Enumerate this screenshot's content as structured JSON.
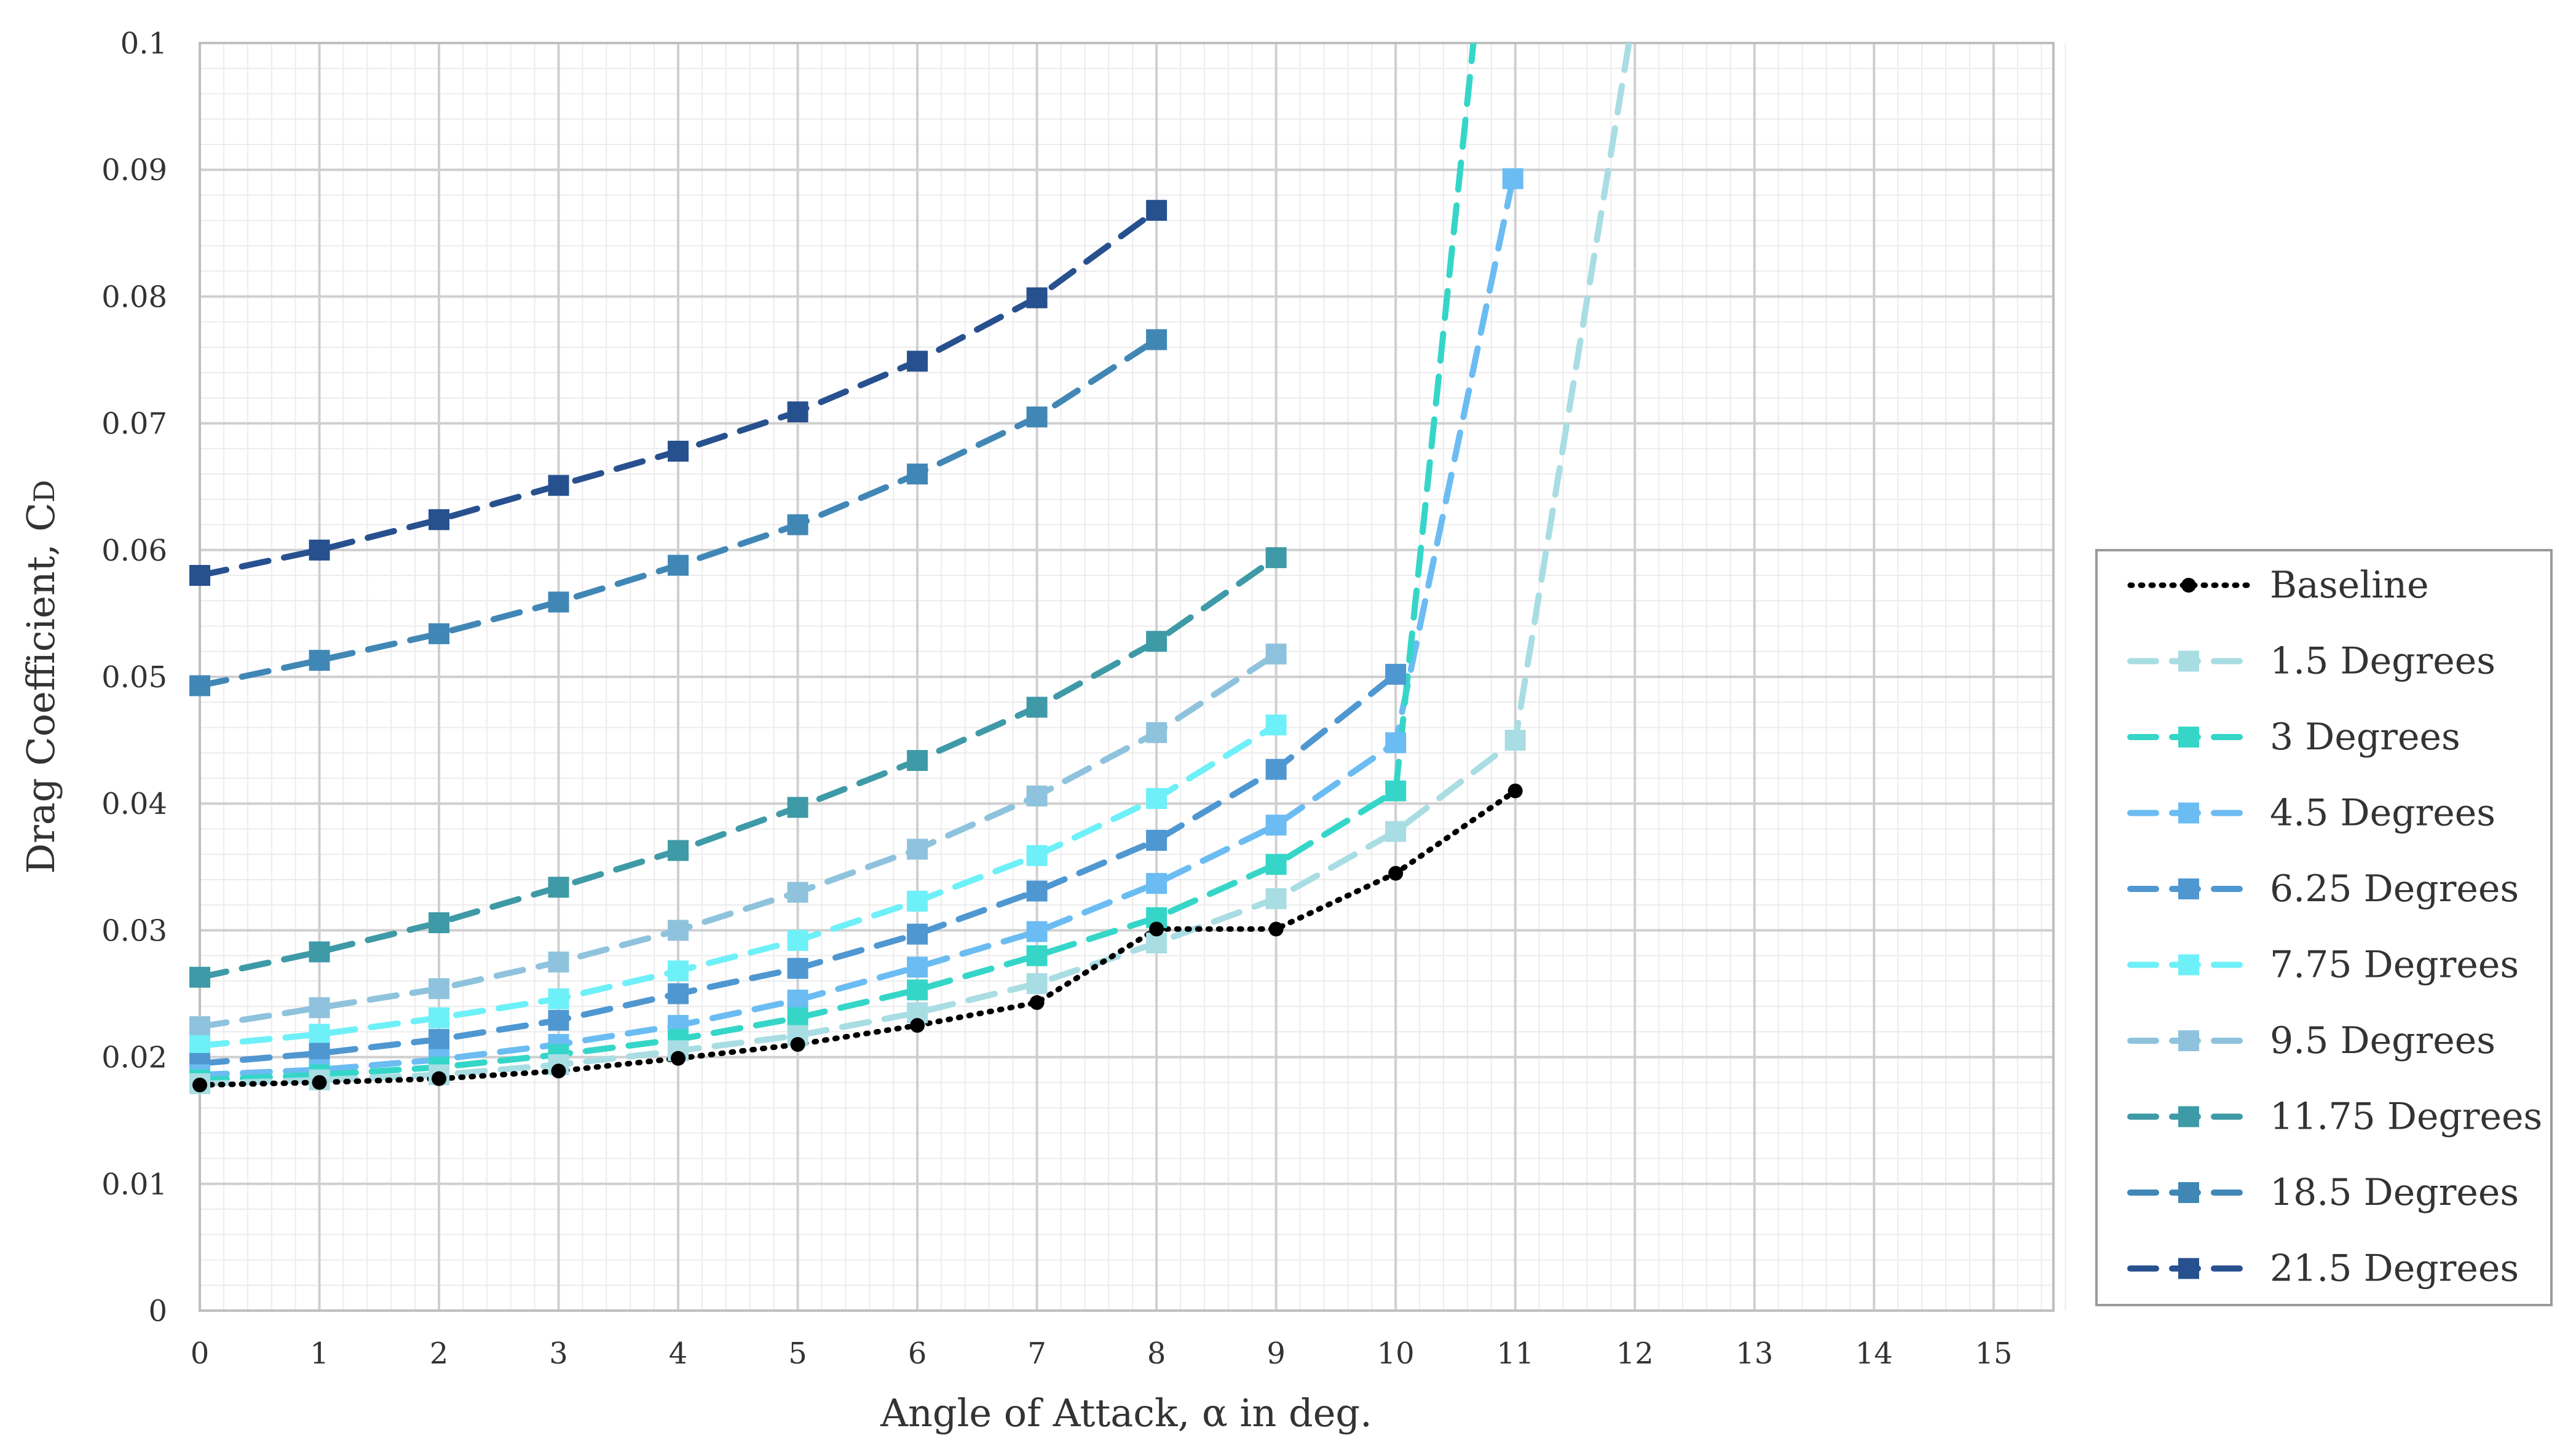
{
  "chart_data": {
    "type": "line",
    "xlabel": "Angle of Attack, α in deg.",
    "ylabel_main": "Drag Coefficient, C",
    "ylabel_sub": "D",
    "xlim": [
      0,
      15.5
    ],
    "ylim": [
      0,
      0.1
    ],
    "x_ticks": [
      "0",
      "1",
      "2",
      "3",
      "4",
      "5",
      "6",
      "7",
      "8",
      "9",
      "10",
      "11",
      "12",
      "13",
      "14",
      "15"
    ],
    "y_ticks": [
      "0",
      "0.01",
      "0.02",
      "0.03",
      "0.04",
      "0.05",
      "0.06",
      "0.07",
      "0.08",
      "0.09",
      "0.1"
    ],
    "grid": true,
    "legend_position": "right",
    "series": [
      {
        "name": "Baseline",
        "color": "#000000",
        "style": "dotted",
        "marker": "circle",
        "x": [
          0,
          1,
          2,
          3,
          4,
          5,
          6,
          7,
          8,
          9,
          10,
          11
        ],
        "y": [
          0.0178,
          0.018,
          0.0183,
          0.0189,
          0.0199,
          0.021,
          0.0225,
          0.0243,
          0.0301,
          0.0301,
          0.0345,
          0.041
        ]
      },
      {
        "name": "1.5 Degrees",
        "color": "#a8dde3",
        "style": "dashed",
        "marker": "square",
        "x": [
          0,
          1,
          2,
          3,
          4,
          5,
          6,
          7,
          8,
          9,
          10,
          11,
          11.95
        ],
        "y": [
          0.0179,
          0.0182,
          0.0186,
          0.0194,
          0.0205,
          0.0217,
          0.0235,
          0.0258,
          0.029,
          0.0325,
          0.0378,
          0.045,
          0.1
        ]
      },
      {
        "name": "3 Degrees",
        "color": "#35d6c8",
        "style": "dashed",
        "marker": "square",
        "x": [
          0,
          1,
          2,
          3,
          4,
          5,
          6,
          7,
          8,
          9,
          10,
          10.65
        ],
        "y": [
          0.0182,
          0.0186,
          0.0192,
          0.0202,
          0.0214,
          0.0231,
          0.0253,
          0.028,
          0.031,
          0.0352,
          0.041,
          0.1
        ]
      },
      {
        "name": "4.5 Degrees",
        "color": "#6bbcf2",
        "style": "dashed",
        "marker": "square",
        "x": [
          0,
          1,
          2,
          3,
          4,
          5,
          6,
          7,
          8,
          9,
          10,
          10.98
        ],
        "y": [
          0.0186,
          0.019,
          0.0198,
          0.021,
          0.0225,
          0.0245,
          0.0271,
          0.0299,
          0.0337,
          0.0383,
          0.0448,
          0.0893
        ]
      },
      {
        "name": "6.25 Degrees",
        "color": "#4f97d1",
        "style": "dashed",
        "marker": "square",
        "x": [
          0,
          1,
          2,
          3,
          4,
          5,
          6,
          7,
          8,
          9,
          10
        ],
        "y": [
          0.0195,
          0.0203,
          0.0214,
          0.0229,
          0.025,
          0.027,
          0.0297,
          0.0331,
          0.0371,
          0.0427,
          0.0502
        ]
      },
      {
        "name": "7.75 Degrees",
        "color": "#6ef0f8",
        "style": "dashed",
        "marker": "square",
        "x": [
          0,
          1,
          2,
          3,
          4,
          5,
          6,
          7,
          8,
          9
        ],
        "y": [
          0.0209,
          0.0218,
          0.0231,
          0.0246,
          0.0268,
          0.0292,
          0.0323,
          0.0359,
          0.0404,
          0.0462
        ]
      },
      {
        "name": "9.5 Degrees",
        "color": "#8fc3dd",
        "style": "dashed",
        "marker": "square",
        "x": [
          0,
          1,
          2,
          3,
          4,
          5,
          6,
          7,
          8,
          9
        ],
        "y": [
          0.0224,
          0.0239,
          0.0254,
          0.0275,
          0.03,
          0.033,
          0.0364,
          0.0406,
          0.0456,
          0.0518
        ]
      },
      {
        "name": "11.75 Degrees",
        "color": "#3e9aa6",
        "style": "dashed",
        "marker": "square",
        "x": [
          0,
          1,
          2,
          3,
          4,
          5,
          6,
          7,
          8,
          9
        ],
        "y": [
          0.0263,
          0.0283,
          0.0306,
          0.0334,
          0.0363,
          0.0397,
          0.0434,
          0.0476,
          0.0528,
          0.0594
        ]
      },
      {
        "name": "18.5 Degrees",
        "color": "#4187b6",
        "style": "dashed",
        "marker": "square",
        "x": [
          0,
          1,
          2,
          3,
          4,
          5,
          6,
          7,
          8
        ],
        "y": [
          0.0493,
          0.0513,
          0.0534,
          0.0559,
          0.0588,
          0.062,
          0.066,
          0.0705,
          0.0766
        ]
      },
      {
        "name": "21.5 Degrees",
        "color": "#27508f",
        "style": "dashed",
        "marker": "square",
        "x": [
          0,
          1,
          2,
          3,
          4,
          5,
          6,
          7,
          8
        ],
        "y": [
          0.058,
          0.06,
          0.0624,
          0.0651,
          0.0678,
          0.0709,
          0.0749,
          0.0799,
          0.0868
        ]
      }
    ]
  }
}
